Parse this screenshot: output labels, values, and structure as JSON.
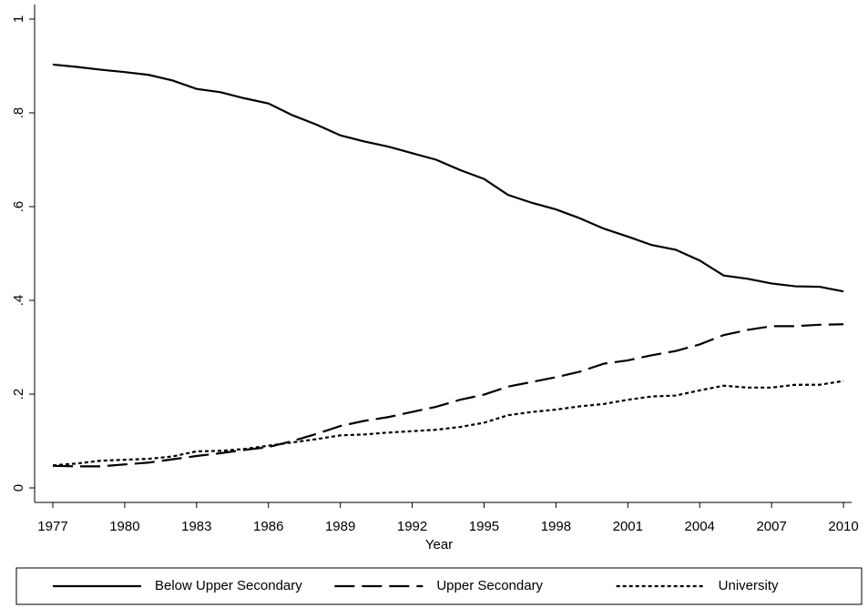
{
  "chart_data": {
    "type": "line",
    "x_label": "Year",
    "x": [
      1977,
      1978,
      1979,
      1980,
      1981,
      1982,
      1983,
      1984,
      1985,
      1986,
      1987,
      1988,
      1989,
      1990,
      1991,
      1992,
      1993,
      1994,
      1995,
      1996,
      1997,
      1998,
      1999,
      2000,
      2001,
      2002,
      2003,
      2004,
      2005,
      2006,
      2007,
      2008,
      2009,
      2010
    ],
    "series": [
      {
        "name": "Below Upper Secondary",
        "color": "#000000",
        "dash": "solid",
        "values": [
          0.903,
          0.898,
          0.892,
          0.887,
          0.881,
          0.869,
          0.851,
          0.844,
          0.831,
          0.82,
          0.795,
          0.775,
          0.752,
          0.739,
          0.728,
          0.714,
          0.7,
          0.678,
          0.659,
          0.625,
          0.608,
          0.594,
          0.575,
          0.553,
          0.536,
          0.518,
          0.508,
          0.485,
          0.453,
          0.446,
          0.436,
          0.43,
          0.429,
          0.419
        ]
      },
      {
        "name": "Upper Secondary",
        "color": "#000000",
        "dash": "longdash",
        "values": [
          0.047,
          0.046,
          0.046,
          0.05,
          0.054,
          0.061,
          0.068,
          0.074,
          0.081,
          0.087,
          0.1,
          0.115,
          0.132,
          0.143,
          0.151,
          0.162,
          0.173,
          0.188,
          0.199,
          0.216,
          0.226,
          0.236,
          0.248,
          0.265,
          0.272,
          0.283,
          0.292,
          0.306,
          0.326,
          0.337,
          0.345,
          0.345,
          0.348,
          0.349
        ]
      },
      {
        "name": "University",
        "color": "#000000",
        "dash": "shortdash",
        "values": [
          0.048,
          0.052,
          0.058,
          0.06,
          0.062,
          0.067,
          0.078,
          0.079,
          0.083,
          0.09,
          0.097,
          0.104,
          0.112,
          0.114,
          0.118,
          0.121,
          0.124,
          0.13,
          0.139,
          0.155,
          0.162,
          0.167,
          0.174,
          0.179,
          0.188,
          0.195,
          0.197,
          0.208,
          0.218,
          0.214,
          0.214,
          0.22,
          0.22,
          0.228
        ]
      }
    ],
    "xlim": [
      1976.24,
      2010.34
    ],
    "ylim": [
      -0.031,
      1.031
    ],
    "xticks": [
      1977,
      1980,
      1983,
      1986,
      1989,
      1992,
      1995,
      1998,
      2001,
      2004,
      2007,
      2010
    ],
    "yticks": [
      0,
      {
        "value": 0.2,
        "label": ".2"
      },
      {
        "value": 0.4,
        "label": ".4"
      },
      {
        "value": 0.6,
        "label": ".6"
      },
      {
        "value": 0.8,
        "label": ".8"
      },
      1
    ],
    "grid": false,
    "legend": "bottom"
  }
}
